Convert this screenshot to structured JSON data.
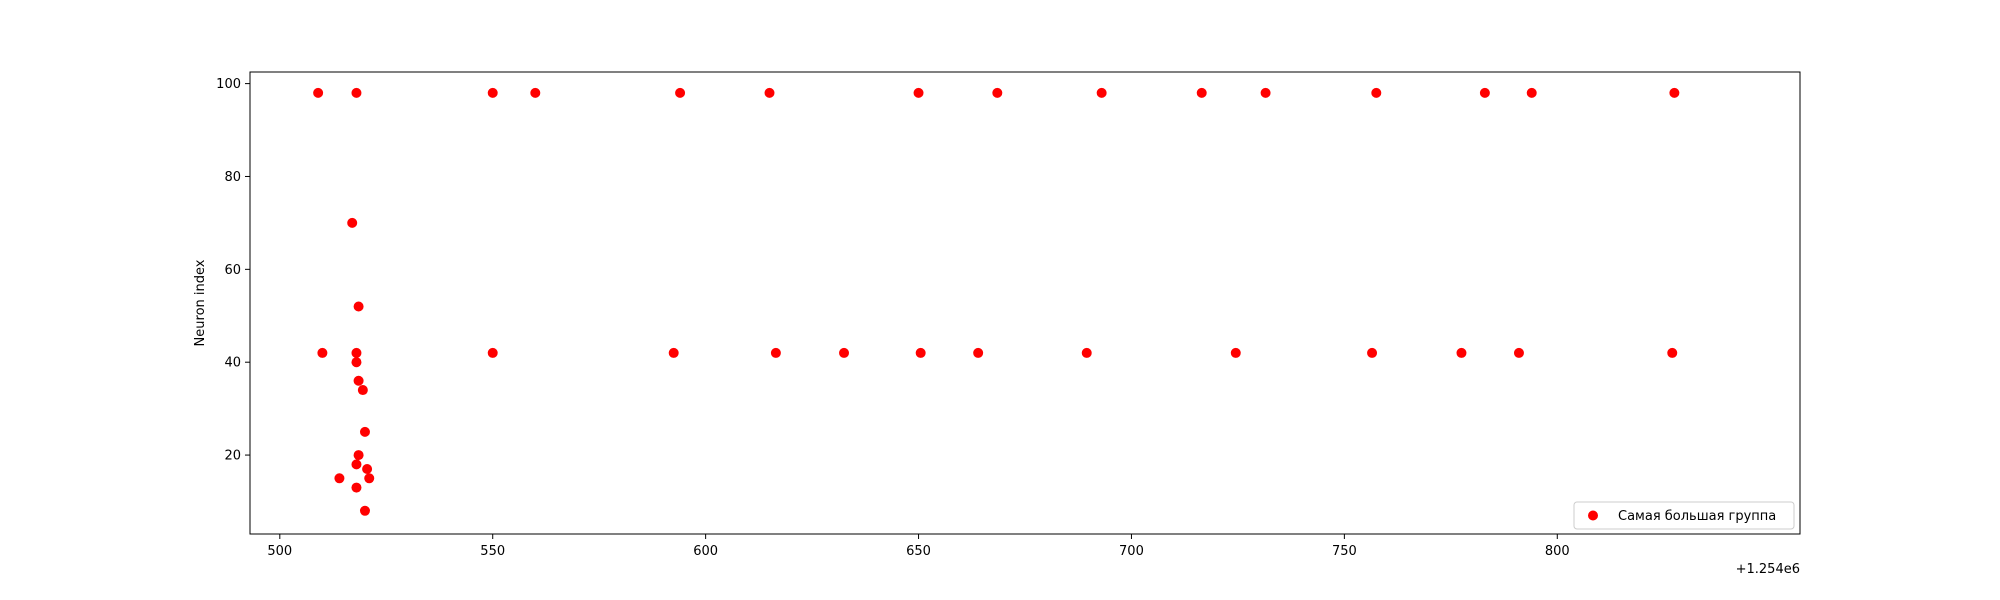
{
  "chart_data": {
    "type": "scatter",
    "title": "",
    "xlabel": "",
    "ylabel": "Neuron index",
    "x_offset_label": "+1.254e6",
    "xlim": [
      1254493,
      1254857
    ],
    "ylim": [
      3,
      102.5
    ],
    "x_ticks": [
      1254500,
      1254550,
      1254600,
      1254650,
      1254700,
      1254750,
      1254800
    ],
    "x_tick_labels": [
      "500",
      "550",
      "600",
      "650",
      "700",
      "750",
      "800"
    ],
    "y_ticks": [
      20,
      40,
      60,
      80,
      100
    ],
    "y_tick_labels": [
      "20",
      "40",
      "60",
      "80",
      "100"
    ],
    "grid": false,
    "legend_position": "lower right",
    "series": [
      {
        "name": "Самая большая группа",
        "color": "#ff0000",
        "marker": "circle",
        "points": [
          {
            "x": 1254509,
            "y": 98
          },
          {
            "x": 1254518,
            "y": 98
          },
          {
            "x": 1254550,
            "y": 98
          },
          {
            "x": 1254560,
            "y": 98
          },
          {
            "x": 1254594,
            "y": 98
          },
          {
            "x": 1254615,
            "y": 98
          },
          {
            "x": 1254650,
            "y": 98
          },
          {
            "x": 1254668.5,
            "y": 98
          },
          {
            "x": 1254693,
            "y": 98
          },
          {
            "x": 1254716.5,
            "y": 98
          },
          {
            "x": 1254731.5,
            "y": 98
          },
          {
            "x": 1254757.5,
            "y": 98
          },
          {
            "x": 1254783,
            "y": 98
          },
          {
            "x": 1254794,
            "y": 98
          },
          {
            "x": 1254827.5,
            "y": 98
          },
          {
            "x": 1254510,
            "y": 42
          },
          {
            "x": 1254550,
            "y": 42
          },
          {
            "x": 1254592.5,
            "y": 42
          },
          {
            "x": 1254616.5,
            "y": 42
          },
          {
            "x": 1254632.5,
            "y": 42
          },
          {
            "x": 1254650.5,
            "y": 42
          },
          {
            "x": 1254664,
            "y": 42
          },
          {
            "x": 1254689.5,
            "y": 42
          },
          {
            "x": 1254724.5,
            "y": 42
          },
          {
            "x": 1254756.5,
            "y": 42
          },
          {
            "x": 1254777.5,
            "y": 42
          },
          {
            "x": 1254791,
            "y": 42
          },
          {
            "x": 1254827,
            "y": 42
          },
          {
            "x": 1254517,
            "y": 70
          },
          {
            "x": 1254518.5,
            "y": 52
          },
          {
            "x": 1254518,
            "y": 42
          },
          {
            "x": 1254518,
            "y": 40
          },
          {
            "x": 1254518.5,
            "y": 36
          },
          {
            "x": 1254519.5,
            "y": 34
          },
          {
            "x": 1254520,
            "y": 25
          },
          {
            "x": 1254518.5,
            "y": 20
          },
          {
            "x": 1254518,
            "y": 18
          },
          {
            "x": 1254520.5,
            "y": 17
          },
          {
            "x": 1254514,
            "y": 15
          },
          {
            "x": 1254521,
            "y": 15
          },
          {
            "x": 1254518,
            "y": 13
          },
          {
            "x": 1254520,
            "y": 8
          }
        ]
      }
    ]
  }
}
